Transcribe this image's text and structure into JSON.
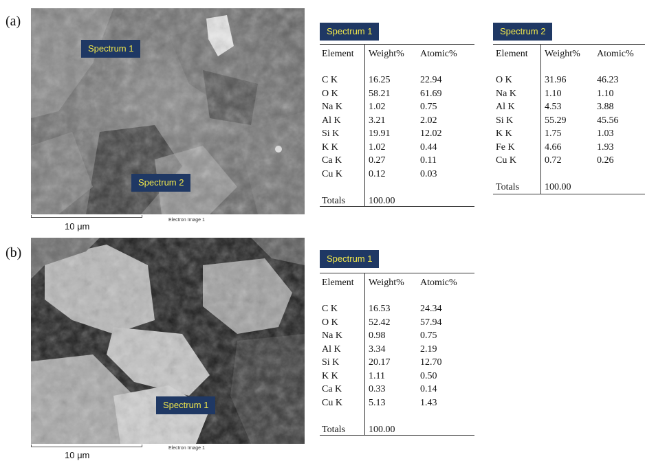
{
  "panels": [
    {
      "label": "(a)",
      "image": {
        "scale": "10 μm",
        "caption": "Electron Image 1",
        "tags": [
          "Spectrum 1",
          "Spectrum 2"
        ]
      },
      "tables": [
        {
          "title": "Spectrum 1",
          "headers": [
            "Element",
            "Weight%",
            "Atomic%"
          ],
          "rows": [
            [
              "C K",
              "16.25",
              "22.94"
            ],
            [
              "O K",
              "58.21",
              "61.69"
            ],
            [
              "Na K",
              "1.02",
              "0.75"
            ],
            [
              "Al K",
              "3.21",
              "2.02"
            ],
            [
              "Si K",
              "19.91",
              "12.02"
            ],
            [
              "K K",
              "1.02",
              "0.44"
            ],
            [
              "Ca K",
              "0.27",
              "0.11"
            ],
            [
              "Cu K",
              "0.12",
              "0.03"
            ]
          ],
          "totals": [
            "Totals",
            "100.00"
          ]
        },
        {
          "title": "Spectrum 2",
          "headers": [
            "Element",
            "Weight%",
            "Atomic%"
          ],
          "rows": [
            [
              "O K",
              "31.96",
              "46.23"
            ],
            [
              "Na K",
              "1.10",
              "1.10"
            ],
            [
              "Al K",
              "4.53",
              "3.88"
            ],
            [
              "Si K",
              "55.29",
              "45.56"
            ],
            [
              "K K",
              "1.75",
              "1.03"
            ],
            [
              "Fe K",
              "4.66",
              "1.93"
            ],
            [
              "Cu K",
              "0.72",
              "0.26"
            ]
          ],
          "totals": [
            "Totals",
            "100.00"
          ]
        }
      ]
    },
    {
      "label": "(b)",
      "image": {
        "scale": "10 μm",
        "caption": "Electron Image 1",
        "tags": [
          "Spectrum 1"
        ]
      },
      "tables": [
        {
          "title": "Spectrum 1",
          "headers": [
            "Element",
            "Weight%",
            "Atomic%"
          ],
          "rows": [
            [
              "C K",
              "16.53",
              "24.34"
            ],
            [
              "O K",
              "52.42",
              "57.94"
            ],
            [
              "Na K",
              "0.98",
              "0.75"
            ],
            [
              "Al K",
              "3.34",
              "2.19"
            ],
            [
              "Si K",
              "20.17",
              "12.70"
            ],
            [
              "K K",
              "1.11",
              "0.50"
            ],
            [
              "Ca K",
              "0.33",
              "0.14"
            ],
            [
              "Cu K",
              "5.13",
              "1.43"
            ]
          ],
          "totals": [
            "Totals",
            "100.00"
          ]
        }
      ]
    }
  ]
}
